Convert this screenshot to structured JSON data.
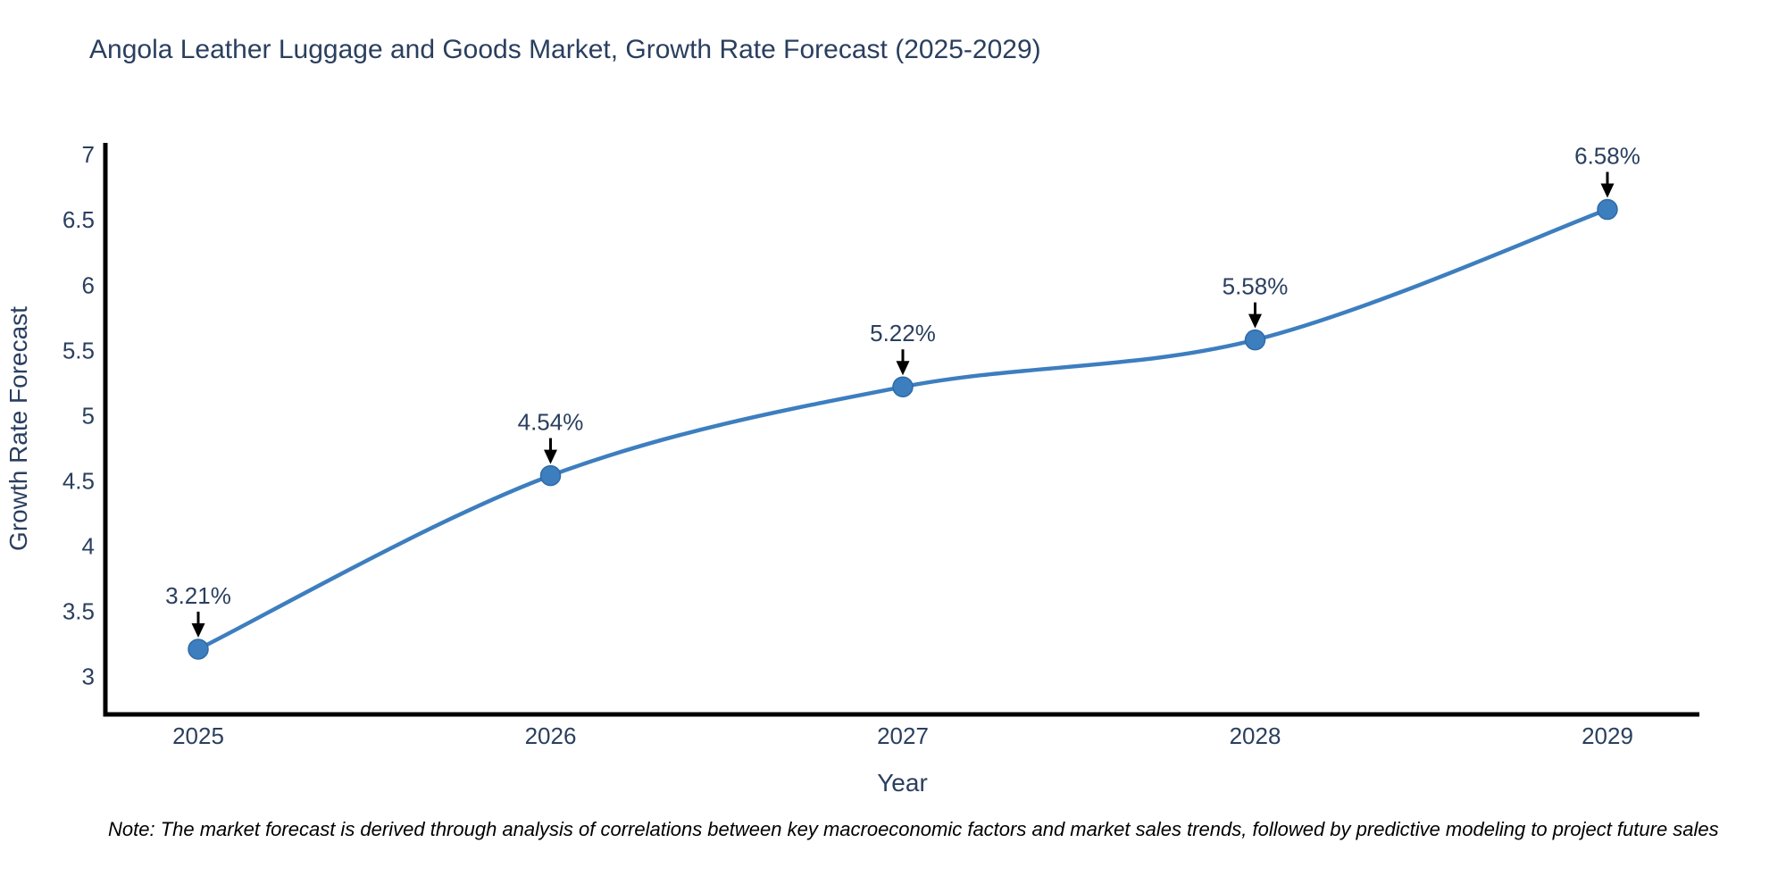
{
  "figure": {
    "note": "Note: The market forecast is derived through analysis of correlations between key macroeconomic factors and market sales trends, followed by predictive modeling to project future sales"
  },
  "chart_data": {
    "type": "line",
    "title": "Angola Leather Luggage and Goods Market, Growth Rate Forecast (2025-2029)",
    "xlabel": "Year",
    "ylabel": "Growth Rate Forecast",
    "categories": [
      "2025",
      "2026",
      "2027",
      "2028",
      "2029"
    ],
    "values": [
      3.21,
      4.54,
      5.22,
      5.58,
      6.58
    ],
    "point_labels": [
      "3.21%",
      "4.54%",
      "5.22%",
      "5.58%",
      "6.58%"
    ],
    "ytick_labels": [
      "3",
      "3.5",
      "4",
      "4.5",
      "5",
      "5.5",
      "6",
      "6.5",
      "7"
    ],
    "ytick_values": [
      3,
      3.5,
      4,
      4.5,
      5,
      5.5,
      6,
      6.5,
      7
    ],
    "ylim": [
      2.71,
      7.09
    ],
    "grid": false,
    "legend": "none",
    "line_shape": "spline",
    "marker_size": 11,
    "colors": {
      "line": "#3d7ebf",
      "marker_fill": "#3d7ebf",
      "marker_edge": "#2f6ba6",
      "axis": "#000000",
      "arrow": "#000000",
      "text": "#2a3f5f",
      "background": "#ffffff"
    }
  }
}
